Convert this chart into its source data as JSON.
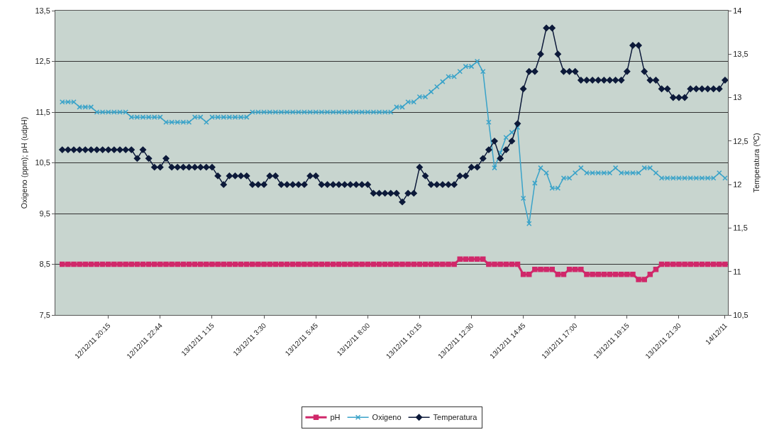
{
  "chart_data": {
    "type": "line",
    "ylabel": "Oxigeno (ppm); pH (udpH)",
    "y2label": "Temperatura (ºC)",
    "categories": [
      null,
      null,
      null,
      null,
      null,
      null,
      null,
      null,
      "12/12/11 20:15",
      null,
      null,
      null,
      null,
      null,
      null,
      null,
      null,
      "12/12/11 22:44",
      null,
      null,
      null,
      null,
      null,
      null,
      null,
      null,
      "13/12/11 1:15",
      null,
      null,
      null,
      null,
      null,
      null,
      null,
      null,
      "13/12/11 3:30",
      null,
      null,
      null,
      null,
      null,
      null,
      null,
      null,
      "13/12/11 5:45",
      null,
      null,
      null,
      null,
      null,
      null,
      null,
      null,
      "13/12/11 8:00",
      null,
      null,
      null,
      null,
      null,
      null,
      null,
      null,
      "13/12/11 10:15",
      null,
      null,
      null,
      null,
      null,
      null,
      null,
      null,
      "13/12/11 12:30",
      null,
      null,
      null,
      null,
      null,
      null,
      null,
      null,
      "13/12/11 14:45",
      null,
      null,
      null,
      null,
      null,
      null,
      null,
      null,
      "13/12/11 17:00",
      null,
      null,
      null,
      null,
      null,
      null,
      null,
      null,
      "13/12/11 19:15",
      null,
      null,
      null,
      null,
      null,
      null,
      null,
      null,
      "13/12/11 21:30",
      null,
      null,
      null,
      null,
      null,
      null,
      null,
      "14/12/11"
    ],
    "series": [
      {
        "name": "pH",
        "color": "#d0286a",
        "marker": "square",
        "values": [
          8.5,
          8.5,
          8.5,
          8.5,
          8.5,
          8.5,
          8.5,
          8.5,
          8.5,
          8.5,
          8.5,
          8.5,
          8.5,
          8.5,
          8.5,
          8.5,
          8.5,
          8.5,
          8.5,
          8.5,
          8.5,
          8.5,
          8.5,
          8.5,
          8.5,
          8.5,
          8.5,
          8.5,
          8.5,
          8.5,
          8.5,
          8.5,
          8.5,
          8.5,
          8.5,
          8.5,
          8.5,
          8.5,
          8.5,
          8.5,
          8.5,
          8.5,
          8.5,
          8.5,
          8.5,
          8.5,
          8.5,
          8.5,
          8.5,
          8.5,
          8.5,
          8.5,
          8.5,
          8.5,
          8.5,
          8.5,
          8.5,
          8.5,
          8.5,
          8.5,
          8.5,
          8.5,
          8.5,
          8.5,
          8.5,
          8.5,
          8.5,
          8.5,
          8.5,
          8.6,
          8.6,
          8.6,
          8.6,
          8.6,
          8.5,
          8.5,
          8.5,
          8.5,
          8.5,
          8.5,
          8.3,
          8.3,
          8.4,
          8.4,
          8.4,
          8.4,
          8.3,
          8.3,
          8.4,
          8.4,
          8.4,
          8.3,
          8.3,
          8.3,
          8.3,
          8.3,
          8.3,
          8.3,
          8.3,
          8.3,
          8.2,
          8.2,
          8.3,
          8.4,
          8.5,
          8.5,
          8.5,
          8.5,
          8.5,
          8.5,
          8.5,
          8.5,
          8.5,
          8.5,
          8.5,
          8.5
        ]
      },
      {
        "name": "Oxigeno",
        "color": "#3aa3c9",
        "marker": "cross",
        "values": [
          11.7,
          11.7,
          11.7,
          11.6,
          11.6,
          11.6,
          11.5,
          11.5,
          11.5,
          11.5,
          11.5,
          11.5,
          11.4,
          11.4,
          11.4,
          11.4,
          11.4,
          11.4,
          11.3,
          11.3,
          11.3,
          11.3,
          11.3,
          11.4,
          11.4,
          11.3,
          11.4,
          11.4,
          11.4,
          11.4,
          11.4,
          11.4,
          11.4,
          11.5,
          11.5,
          11.5,
          11.5,
          11.5,
          11.5,
          11.5,
          11.5,
          11.5,
          11.5,
          11.5,
          11.5,
          11.5,
          11.5,
          11.5,
          11.5,
          11.5,
          11.5,
          11.5,
          11.5,
          11.5,
          11.5,
          11.5,
          11.5,
          11.5,
          11.6,
          11.6,
          11.7,
          11.7,
          11.8,
          11.8,
          11.9,
          12.0,
          12.1,
          12.2,
          12.2,
          12.3,
          12.4,
          12.4,
          12.5,
          12.3,
          11.3,
          10.4,
          10.7,
          11.0,
          11.1,
          11.2,
          9.8,
          9.3,
          10.1,
          10.4,
          10.3,
          10.0,
          10.0,
          10.2,
          10.2,
          10.3,
          10.4,
          10.3,
          10.3,
          10.3,
          10.3,
          10.3,
          10.4,
          10.3,
          10.3,
          10.3,
          10.3,
          10.4,
          10.4,
          10.3,
          10.2,
          10.2,
          10.2,
          10.2,
          10.2,
          10.2,
          10.2,
          10.2,
          10.2,
          10.2,
          10.3,
          10.2
        ]
      },
      {
        "name": "Temperatura",
        "color": "#0d1a3a",
        "marker": "diamond",
        "axis": "y2",
        "values": [
          12.4,
          12.4,
          12.4,
          12.4,
          12.4,
          12.4,
          12.4,
          12.4,
          12.4,
          12.4,
          12.4,
          12.4,
          12.4,
          12.3,
          12.4,
          12.3,
          12.2,
          12.2,
          12.3,
          12.2,
          12.2,
          12.2,
          12.2,
          12.2,
          12.2,
          12.2,
          12.2,
          12.1,
          12.0,
          12.1,
          12.1,
          12.1,
          12.1,
          12.0,
          12.0,
          12.0,
          12.1,
          12.1,
          12.0,
          12.0,
          12.0,
          12.0,
          12.0,
          12.1,
          12.1,
          12.0,
          12.0,
          12.0,
          12.0,
          12.0,
          12.0,
          12.0,
          12.0,
          12.0,
          11.9,
          11.9,
          11.9,
          11.9,
          11.9,
          11.8,
          11.9,
          11.9,
          12.2,
          12.1,
          12.0,
          12.0,
          12.0,
          12.0,
          12.0,
          12.1,
          12.1,
          12.2,
          12.2,
          12.3,
          12.4,
          12.5,
          12.3,
          12.4,
          12.5,
          12.7,
          13.1,
          13.3,
          13.3,
          13.5,
          13.8,
          13.8,
          13.5,
          13.3,
          13.3,
          13.3,
          13.2,
          13.2,
          13.2,
          13.2,
          13.2,
          13.2,
          13.2,
          13.2,
          13.3,
          13.6,
          13.6,
          13.3,
          13.2,
          13.2,
          13.1,
          13.1,
          13.0,
          13.0,
          13.0,
          13.1,
          13.1,
          13.1,
          13.1,
          13.1,
          13.1,
          13.2
        ]
      }
    ],
    "ylim": [
      7.5,
      13.5
    ],
    "yticks": [
      {
        "value": 7.5,
        "label": "7,5"
      },
      {
        "value": 8.5,
        "label": "8,5"
      },
      {
        "value": 9.5,
        "label": "9,5"
      },
      {
        "value": 10.5,
        "label": "10,5"
      },
      {
        "value": 11.5,
        "label": "11,5"
      },
      {
        "value": 12.5,
        "label": "12,5"
      },
      {
        "value": 13.5,
        "label": "13,5"
      }
    ],
    "y2lim": [
      10.5,
      14
    ],
    "y2ticks": [
      {
        "value": 10.5,
        "label": "10,5"
      },
      11,
      {
        "value": 11.5,
        "label": "11,5"
      },
      12,
      {
        "value": 12.5,
        "label": "12,5"
      },
      13,
      {
        "value": 13.5,
        "label": "13,5"
      },
      14
    ],
    "grid": "y",
    "legend": "bottom"
  }
}
